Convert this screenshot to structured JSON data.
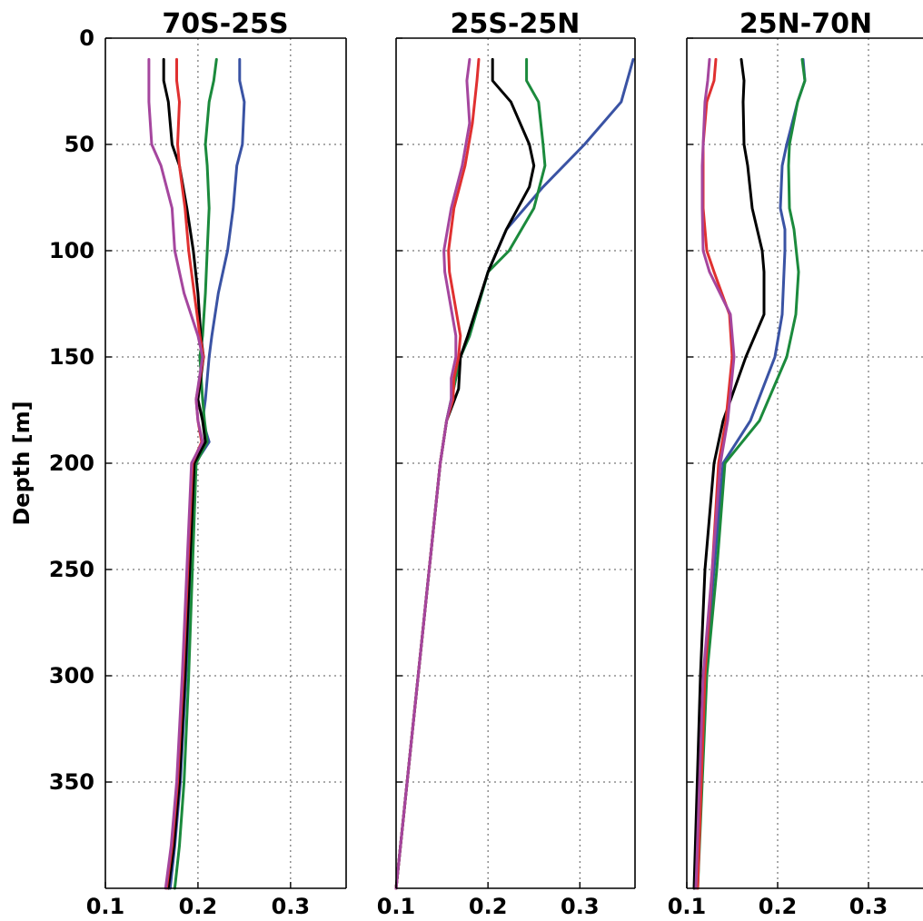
{
  "chart_data": [
    {
      "type": "line",
      "title": "70S-25S",
      "ylabel": "Depth [m]",
      "xlim": [
        0.1,
        0.36
      ],
      "ylim": [
        400,
        0
      ],
      "xticks": [
        "0.1",
        "0.2",
        "0.3"
      ],
      "yticks": [
        "0",
        "50",
        "100",
        "150",
        "200",
        "250",
        "300",
        "350"
      ],
      "grid": true,
      "series": [
        {
          "color": "#3a53a4",
          "x": [
            0.245,
            0.245,
            0.25,
            0.248,
            0.242,
            0.238,
            0.232,
            0.222,
            0.215,
            0.212,
            0.208,
            0.205,
            0.212,
            0.197,
            0.193,
            0.187,
            0.181,
            0.175,
            0.17
          ],
          "y": [
            10,
            20,
            30,
            50,
            60,
            80,
            100,
            120,
            140,
            150,
            170,
            180,
            190,
            200,
            250,
            300,
            350,
            380,
            400
          ]
        },
        {
          "color": "#1b8a3c",
          "x": [
            0.22,
            0.217,
            0.212,
            0.208,
            0.21,
            0.212,
            0.21,
            0.208,
            0.205,
            0.202,
            0.205,
            0.207,
            0.21,
            0.198,
            0.194,
            0.19,
            0.185,
            0.18,
            0.175
          ],
          "y": [
            10,
            20,
            30,
            50,
            60,
            80,
            100,
            120,
            140,
            150,
            170,
            180,
            190,
            200,
            250,
            300,
            350,
            380,
            400
          ]
        },
        {
          "color": "#000000",
          "x": [
            0.163,
            0.163,
            0.168,
            0.172,
            0.18,
            0.188,
            0.195,
            0.2,
            0.203,
            0.206,
            0.2,
            0.205,
            0.208,
            0.196,
            0.191,
            0.186,
            0.18,
            0.174,
            0.168
          ],
          "y": [
            10,
            20,
            30,
            50,
            60,
            80,
            100,
            120,
            140,
            150,
            170,
            180,
            190,
            200,
            250,
            300,
            350,
            380,
            400
          ]
        },
        {
          "color": "#e03030",
          "x": [
            0.177,
            0.177,
            0.18,
            0.178,
            0.18,
            0.186,
            0.19,
            0.196,
            0.202,
            0.206,
            0.198,
            0.2,
            0.204,
            0.194,
            0.189,
            0.184,
            0.178,
            0.172,
            0.166
          ],
          "y": [
            10,
            20,
            30,
            50,
            60,
            80,
            100,
            120,
            140,
            150,
            170,
            180,
            190,
            200,
            250,
            300,
            350,
            380,
            400
          ]
        },
        {
          "color": "#a5469e",
          "x": [
            0.147,
            0.147,
            0.147,
            0.15,
            0.16,
            0.172,
            0.175,
            0.185,
            0.2,
            0.205,
            0.198,
            0.2,
            0.205,
            0.193,
            0.188,
            0.183,
            0.177,
            0.171,
            0.165
          ],
          "y": [
            10,
            20,
            30,
            50,
            60,
            80,
            100,
            120,
            140,
            150,
            170,
            180,
            190,
            200,
            250,
            300,
            350,
            380,
            400
          ]
        }
      ]
    },
    {
      "type": "line",
      "title": "25S-25N",
      "xlim": [
        0.1,
        0.36
      ],
      "ylim": [
        400,
        0
      ],
      "xticks": [
        "0.1",
        "0.2",
        "0.3"
      ],
      "yticks": [
        "0",
        "50",
        "100",
        "150",
        "200",
        "250",
        "300",
        "350"
      ],
      "grid": true,
      "series": [
        {
          "color": "#3a53a4",
          "x": [
            0.358,
            0.345,
            0.305,
            0.26,
            0.22,
            0.2,
            0.18,
            0.17,
            0.165,
            0.155,
            0.148,
            0.1
          ],
          "y": [
            10,
            30,
            50,
            70,
            90,
            110,
            140,
            150,
            160,
            180,
            200,
            400
          ]
        },
        {
          "color": "#1b8a3c",
          "x": [
            0.242,
            0.242,
            0.255,
            0.26,
            0.262,
            0.25,
            0.223,
            0.2,
            0.18,
            0.17,
            0.165,
            0.155,
            0.148,
            0.1
          ],
          "y": [
            10,
            20,
            30,
            50,
            60,
            80,
            100,
            110,
            140,
            150,
            160,
            180,
            200,
            400
          ]
        },
        {
          "color": "#000000",
          "x": [
            0.205,
            0.205,
            0.225,
            0.245,
            0.25,
            0.245,
            0.22,
            0.2,
            0.178,
            0.17,
            0.168,
            0.155,
            0.148,
            0.1
          ],
          "y": [
            10,
            20,
            30,
            50,
            60,
            70,
            90,
            110,
            140,
            150,
            165,
            180,
            200,
            400
          ]
        },
        {
          "color": "#e03030",
          "x": [
            0.19,
            0.188,
            0.183,
            0.175,
            0.163,
            0.157,
            0.158,
            0.17,
            0.168,
            0.163,
            0.162,
            0.155,
            0.148,
            0.1
          ],
          "y": [
            10,
            20,
            40,
            60,
            80,
            100,
            110,
            140,
            150,
            160,
            170,
            180,
            200,
            400
          ]
        },
        {
          "color": "#a5469e",
          "x": [
            0.18,
            0.177,
            0.18,
            0.172,
            0.16,
            0.152,
            0.153,
            0.165,
            0.165,
            0.16,
            0.16,
            0.155,
            0.148,
            0.1
          ],
          "y": [
            10,
            20,
            40,
            60,
            80,
            100,
            110,
            140,
            150,
            160,
            170,
            180,
            200,
            400
          ]
        }
      ]
    },
    {
      "type": "line",
      "title": "25N-70N",
      "xlim": [
        0.1,
        0.36
      ],
      "ylim": [
        400,
        0
      ],
      "xticks": [
        "0.1",
        "0.2",
        "0.3"
      ],
      "yticks": [
        "0",
        "50",
        "100",
        "150",
        "200",
        "250",
        "300",
        "350"
      ],
      "grid": true,
      "series": [
        {
          "color": "#3a53a4",
          "x": [
            0.228,
            0.23,
            0.222,
            0.21,
            0.205,
            0.203,
            0.208,
            0.208,
            0.205,
            0.197,
            0.17,
            0.14,
            0.13,
            0.12,
            0.11
          ],
          "y": [
            10,
            20,
            30,
            50,
            60,
            80,
            90,
            100,
            130,
            150,
            180,
            200,
            250,
            300,
            400
          ]
        },
        {
          "color": "#1b8a3c",
          "x": [
            0.227,
            0.23,
            0.222,
            0.213,
            0.212,
            0.213,
            0.218,
            0.223,
            0.22,
            0.21,
            0.18,
            0.142,
            0.133,
            0.122,
            0.112
          ],
          "y": [
            10,
            20,
            30,
            50,
            60,
            80,
            90,
            110,
            130,
            150,
            180,
            200,
            250,
            300,
            400
          ]
        },
        {
          "color": "#000000",
          "x": [
            0.16,
            0.163,
            0.162,
            0.163,
            0.167,
            0.172,
            0.183,
            0.185,
            0.185,
            0.165,
            0.14,
            0.13,
            0.12,
            0.115,
            0.108
          ],
          "y": [
            10,
            20,
            30,
            50,
            60,
            80,
            100,
            110,
            130,
            150,
            180,
            200,
            250,
            300,
            400
          ]
        },
        {
          "color": "#e03030",
          "x": [
            0.132,
            0.13,
            0.122,
            0.118,
            0.118,
            0.118,
            0.122,
            0.13,
            0.147,
            0.15,
            0.143,
            0.135,
            0.128,
            0.12,
            0.112
          ],
          "y": [
            10,
            20,
            30,
            50,
            60,
            80,
            100,
            110,
            130,
            150,
            180,
            200,
            250,
            300,
            400
          ]
        },
        {
          "color": "#a5469e",
          "x": [
            0.125,
            0.123,
            0.12,
            0.118,
            0.117,
            0.117,
            0.118,
            0.125,
            0.148,
            0.152,
            0.145,
            0.137,
            0.128,
            0.118,
            0.11
          ],
          "y": [
            10,
            20,
            30,
            50,
            60,
            80,
            100,
            110,
            130,
            150,
            180,
            200,
            250,
            300,
            400
          ]
        }
      ]
    }
  ]
}
